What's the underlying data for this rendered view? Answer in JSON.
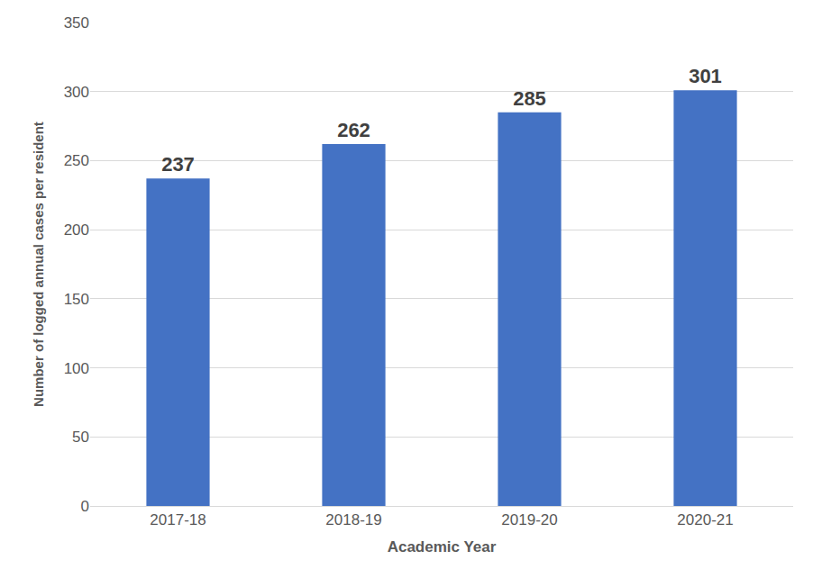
{
  "chart_data": {
    "type": "bar",
    "categories": [
      "2017-18",
      "2018-19",
      "2019-20",
      "2020-21"
    ],
    "values": [
      237,
      262,
      285,
      301
    ],
    "color": "#4472c4",
    "x_label": "Academic Year",
    "y_label": "Number of logged annual cases per resident",
    "ylim": [
      0,
      350
    ],
    "yticks": [
      0,
      50,
      100,
      150,
      200,
      250,
      300,
      350
    ],
    "grid": true,
    "data_labels": true
  }
}
